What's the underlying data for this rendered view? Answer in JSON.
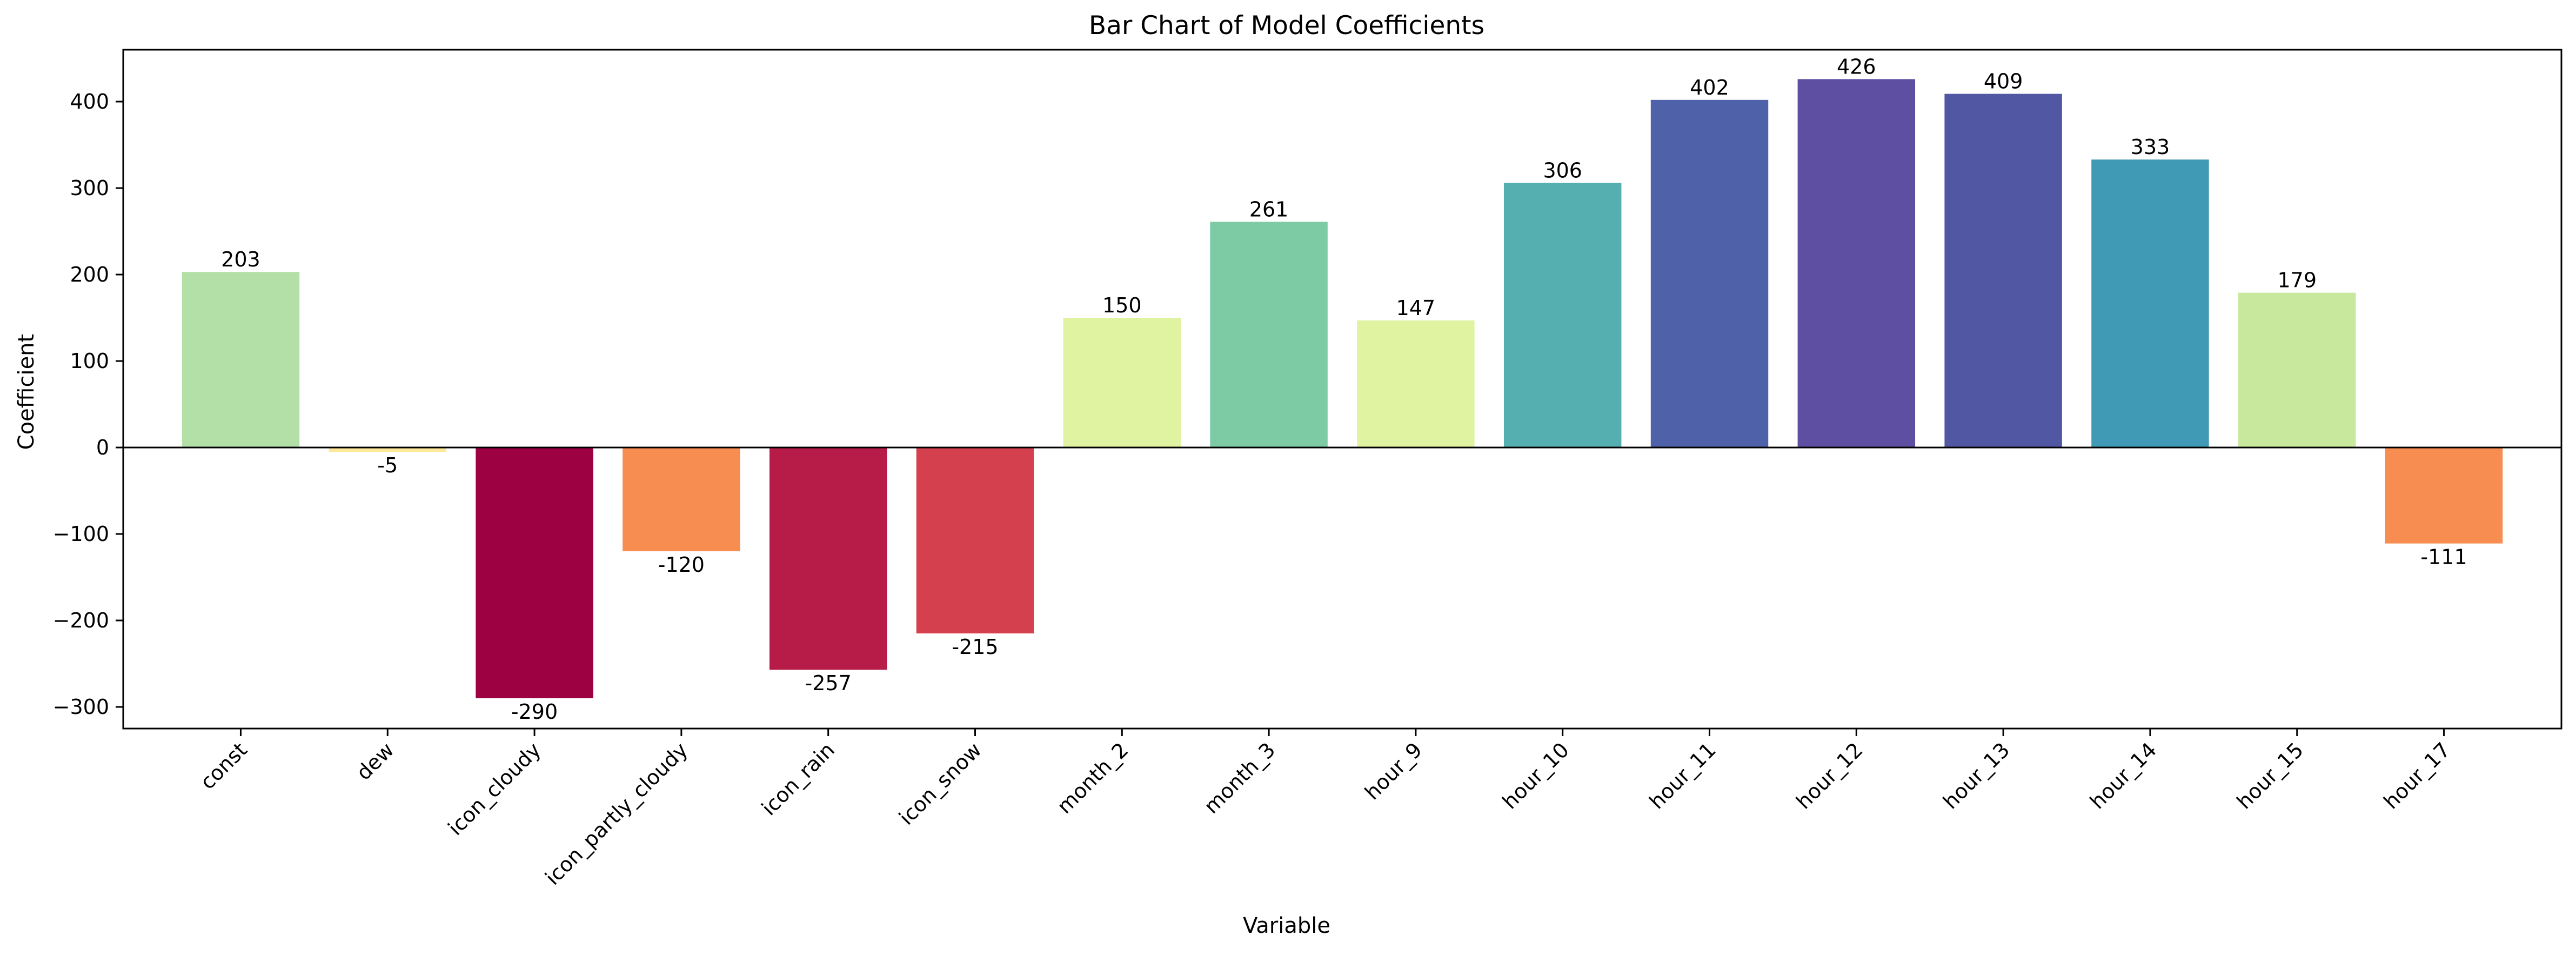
{
  "chart_data": {
    "type": "bar",
    "title": "Bar Chart of Model Coefficients",
    "xlabel": "Variable",
    "ylabel": "Coefficient",
    "ylim": [
      -325,
      460
    ],
    "yticks": [
      -300,
      -200,
      -100,
      0,
      100,
      200,
      300,
      400
    ],
    "grid": false,
    "zero_line": true,
    "categories": [
      "const",
      "dew",
      "icon_cloudy",
      "icon_partly_cloudy",
      "icon_rain",
      "icon_snow",
      "month_2",
      "month_3",
      "hour_9",
      "hour_10",
      "hour_11",
      "hour_12",
      "hour_13",
      "hour_14",
      "hour_15",
      "hour_17"
    ],
    "values": [
      203,
      -5,
      -290,
      -120,
      -257,
      -215,
      150,
      261,
      147,
      306,
      402,
      426,
      409,
      333,
      179,
      -111
    ],
    "labels": [
      "203",
      "-5",
      "-290",
      "-120",
      "-257",
      "-215",
      "150",
      "261",
      "147",
      "306",
      "402",
      "426",
      "409",
      "333",
      "179",
      "-111"
    ],
    "colors": [
      "#b3e0a6",
      "#fee89a",
      "#9e0142",
      "#f88d52",
      "#b71b48",
      "#d5404e",
      "#e0f3a1",
      "#7ccba4",
      "#e0f3a1",
      "#55aeaf",
      "#4f61a9",
      "#5e4fa2",
      "#5257a4",
      "#409ab5",
      "#c8e89e",
      "#f88d52"
    ]
  }
}
